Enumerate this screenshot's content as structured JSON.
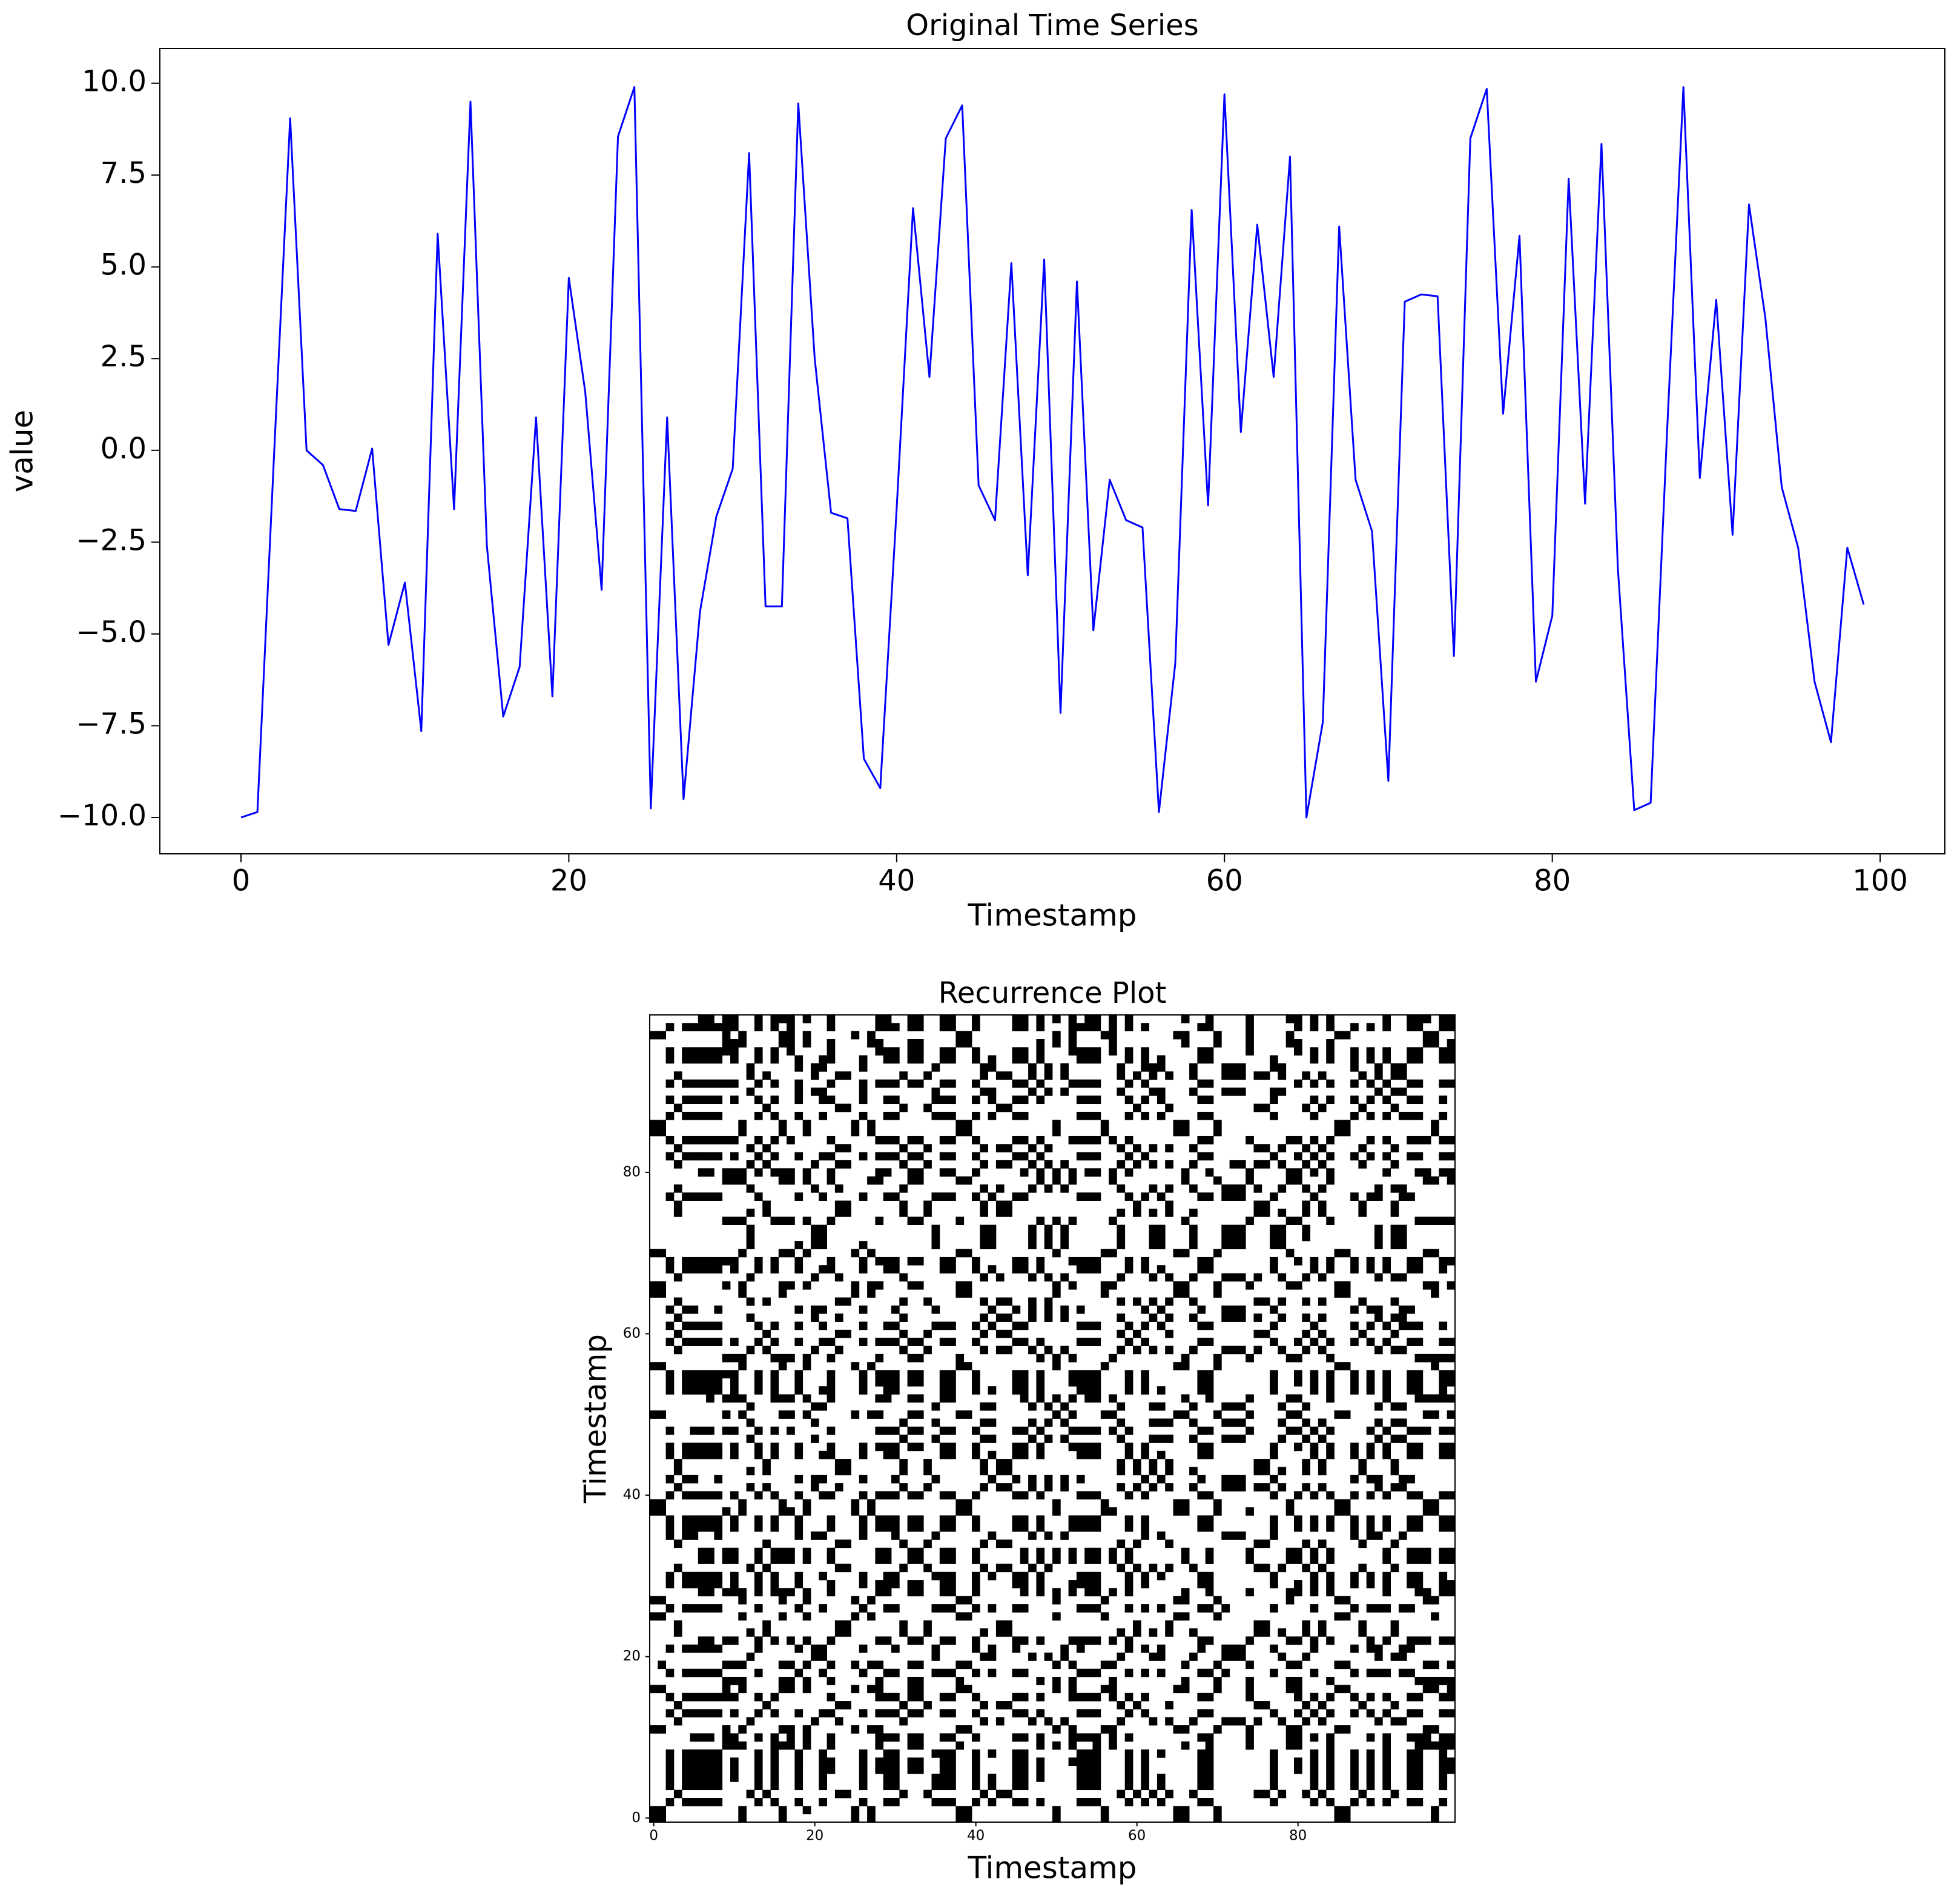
{
  "chart_data": [
    {
      "type": "line",
      "title": "Original Time Series",
      "xlabel": "Timestamp",
      "ylabel": "value",
      "x": [
        0,
        1,
        2,
        3,
        4,
        5,
        6,
        7,
        8,
        9,
        10,
        11,
        12,
        13,
        14,
        15,
        16,
        17,
        18,
        19,
        20,
        21,
        22,
        23,
        24,
        25,
        26,
        27,
        28,
        29,
        30,
        31,
        32,
        33,
        34,
        35,
        36,
        37,
        38,
        39,
        40,
        41,
        42,
        43,
        44,
        45,
        46,
        47,
        48,
        49,
        50,
        51,
        52,
        53,
        54,
        55,
        56,
        57,
        58,
        59,
        60,
        61,
        62,
        63,
        64,
        65,
        66,
        67,
        68,
        69,
        70,
        71,
        72,
        73,
        74,
        75,
        76,
        77,
        78,
        79,
        80,
        81,
        82,
        83,
        84,
        85,
        86,
        87,
        88,
        89,
        90,
        91,
        92,
        93,
        94,
        95,
        96,
        97,
        98,
        99
      ],
      "values": [
        -10.0,
        -9.85,
        -0.3,
        9.05,
        0.0,
        -0.4,
        -1.6,
        -1.65,
        0.05,
        -5.3,
        -3.6,
        -7.65,
        5.9,
        -1.6,
        9.5,
        -2.6,
        -7.25,
        -5.9,
        0.9,
        -6.7,
        4.7,
        1.6,
        -3.8,
        8.55,
        9.9,
        -9.75,
        0.9,
        -9.5,
        -4.4,
        -1.8,
        -0.5,
        8.1,
        -4.25,
        -4.25,
        9.45,
        2.5,
        -1.7,
        -1.85,
        -8.4,
        -9.2,
        -1.6,
        6.6,
        2.0,
        8.5,
        9.4,
        -0.95,
        -1.9,
        5.1,
        -3.4,
        5.2,
        -7.15,
        4.6,
        -4.9,
        -0.8,
        -1.9,
        -2.1,
        -9.85,
        -5.8,
        6.55,
        -1.5,
        9.7,
        0.5,
        6.15,
        2.0,
        8.0,
        -10.0,
        -7.4,
        6.1,
        -0.8,
        -2.2,
        -9.0,
        4.05,
        4.25,
        4.2,
        -5.6,
        8.5,
        9.85,
        1.0,
        5.85,
        -6.3,
        -4.5,
        7.4,
        -1.45,
        8.35,
        -3.2,
        -9.8,
        -9.6,
        0.5,
        9.9,
        -0.75,
        4.1,
        -2.3,
        6.7,
        3.6,
        -1.0,
        -2.65,
        -6.3,
        -7.95,
        -2.65,
        -4.2
      ],
      "color": "#0000ff",
      "xlim": [
        -4.95,
        103.95
      ],
      "xticks": [
        0,
        20,
        40,
        60,
        80,
        100
      ],
      "ylim": [
        -10.99,
        10.95
      ],
      "yticks": [
        {
          "value": -10,
          "label": "−10.0"
        },
        {
          "value": -7.5,
          "label": "−7.5"
        },
        {
          "value": -5,
          "label": "−5.0"
        },
        {
          "value": -2.5,
          "label": "−2.5"
        },
        {
          "value": 0,
          "label": "0.0"
        },
        {
          "value": 2.5,
          "label": "2.5"
        },
        {
          "value": 5,
          "label": "5.0"
        },
        {
          "value": 7.5,
          "label": "7.5"
        },
        {
          "value": 10,
          "label": "10.0"
        }
      ]
    },
    {
      "type": "recurrence",
      "title": "Recurrence Plot",
      "xlabel": "Timestamp",
      "ylabel": "Timestamp",
      "xlim": [
        -0.5,
        99.5
      ],
      "xticks": [
        0,
        20,
        40,
        60,
        80
      ],
      "ylim": [
        -0.5,
        99.5
      ],
      "yticks": [
        0,
        20,
        40,
        60,
        80
      ]
    }
  ]
}
